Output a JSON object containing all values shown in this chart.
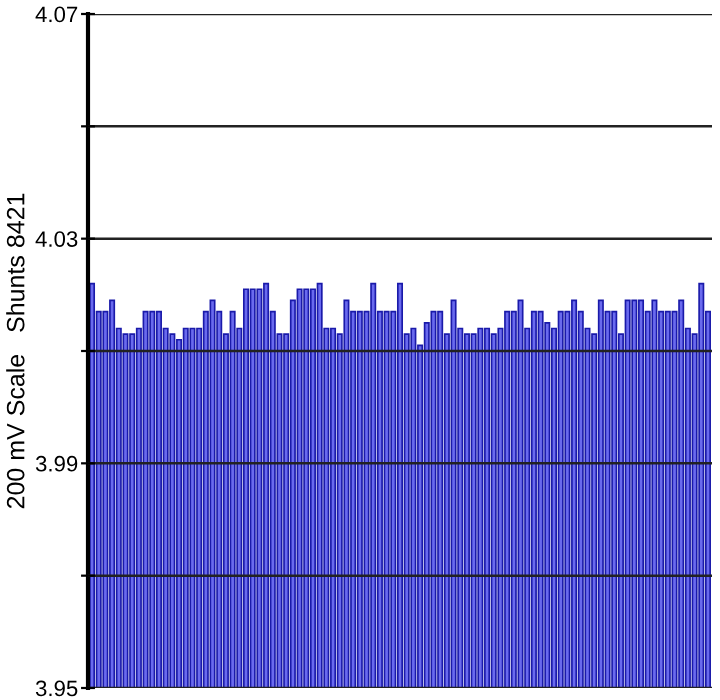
{
  "chart_data": {
    "type": "bar",
    "ylabel": "200 mV Scale   Shunts 8421",
    "categories": [
      null,
      null,
      null,
      null,
      null,
      null,
      null,
      null,
      null,
      null,
      null,
      null,
      null,
      null,
      null,
      null,
      null,
      null,
      null,
      null,
      null,
      null,
      null,
      null,
      null,
      null,
      null,
      null,
      null,
      null,
      null,
      null,
      null,
      null,
      null,
      null,
      null,
      null,
      null,
      null,
      null,
      null,
      null,
      null,
      null,
      null,
      null,
      null,
      null,
      null,
      null,
      null,
      null,
      null,
      null,
      null,
      null,
      null,
      null,
      null,
      null,
      null,
      null,
      null,
      null,
      null,
      null,
      null,
      null,
      null,
      null,
      null,
      null,
      null,
      null,
      null,
      null,
      null,
      null,
      null,
      null,
      null,
      null,
      null,
      null,
      null,
      null,
      null,
      null,
      null,
      null,
      null,
      null
    ],
    "values": [
      4.022,
      4.017,
      4.017,
      4.019,
      4.014,
      4.013,
      4.013,
      4.014,
      4.017,
      4.017,
      4.017,
      4.014,
      4.013,
      4.012,
      4.014,
      4.014,
      4.014,
      4.017,
      4.019,
      4.017,
      4.013,
      4.017,
      4.014,
      4.021,
      4.021,
      4.021,
      4.022,
      4.017,
      4.013,
      4.013,
      4.019,
      4.021,
      4.021,
      4.021,
      4.022,
      4.014,
      4.014,
      4.013,
      4.019,
      4.017,
      4.017,
      4.017,
      4.022,
      4.017,
      4.017,
      4.017,
      4.022,
      4.013,
      4.014,
      4.011,
      4.015,
      4.017,
      4.017,
      4.013,
      4.019,
      4.014,
      4.013,
      4.013,
      4.014,
      4.014,
      4.013,
      4.014,
      4.017,
      4.017,
      4.019,
      4.014,
      4.017,
      4.017,
      4.015,
      4.014,
      4.017,
      4.017,
      4.019,
      4.017,
      4.014,
      4.013,
      4.019,
      4.017,
      4.017,
      4.013,
      4.019,
      4.019,
      4.019,
      4.017,
      4.019,
      4.017,
      4.017,
      4.017,
      4.019,
      4.014,
      4.013,
      4.022,
      4.017
    ],
    "color": "#6a6aee",
    "ylim": [
      3.95,
      4.07
    ],
    "yticks": [
      3.95,
      {
        "value": 3.97,
        "label": null
      },
      3.99,
      {
        "value": 4.01,
        "label": null
      },
      4.03,
      {
        "value": 4.05,
        "label": null
      },
      4.07
    ],
    "grid": "y"
  }
}
